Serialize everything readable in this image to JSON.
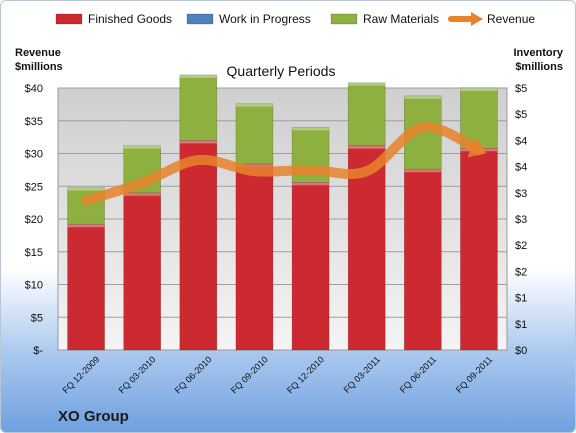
{
  "chart_data": {
    "type": "bar",
    "stacked": true,
    "title": "Quarterly Periods",
    "company": "XO Group",
    "ylabel_left": [
      "Revenue",
      "$millions"
    ],
    "ylabel_right": [
      "Inventory",
      "$millions"
    ],
    "categories": [
      "FQ 12-2009",
      "FQ 03-2010",
      "FQ 06-2010",
      "FQ 09-2010",
      "FQ 12-2010",
      "FQ 03-2011",
      "FQ 06-2011",
      "FQ 09-2011"
    ],
    "series": [
      {
        "name": "Finished Goods",
        "color": "#cc2a30",
        "values": [
          2.4,
          3.0,
          4.0,
          3.55,
          3.2,
          3.9,
          3.45,
          3.85
        ]
      },
      {
        "name": "Work in Progress",
        "color": "#4f81bd",
        "values": [
          0,
          0,
          0,
          0,
          0,
          0,
          0,
          0
        ]
      },
      {
        "name": "Raw Materials",
        "color": "#8db040",
        "values": [
          0.7,
          0.9,
          1.25,
          1.15,
          1.05,
          1.2,
          1.4,
          1.15
        ]
      }
    ],
    "line_series": {
      "name": "Revenue",
      "color": "#e8822b",
      "axis": "left",
      "values": [
        22.8,
        25.5,
        29.0,
        27.3,
        27.5,
        27.3,
        34.0,
        30.5
      ]
    },
    "ylim_left": [
      0,
      40
    ],
    "ylim_right": [
      0,
      5
    ],
    "left_ticks": [
      "$-",
      "$5",
      "$10",
      "$15",
      "$20",
      "$25",
      "$30",
      "$35",
      "$40"
    ],
    "right_ticks": [
      "$0",
      "$1",
      "$1",
      "$2",
      "$2",
      "$3",
      "$3",
      "$4",
      "$4",
      "$5",
      "$5"
    ],
    "legend_position": "top",
    "grid": true
  }
}
